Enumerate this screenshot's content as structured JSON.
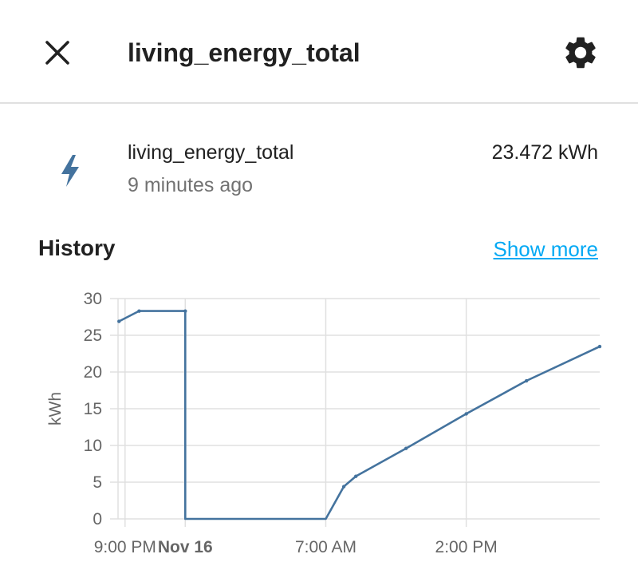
{
  "header": {
    "title": "living_energy_total",
    "close_icon": "close-icon",
    "settings_icon": "gear-icon"
  },
  "entity": {
    "icon": "lightning-bolt-icon",
    "name": "living_energy_total",
    "last_changed": "9 minutes ago",
    "state": "23.472 kWh"
  },
  "history": {
    "title": "History",
    "show_more": "Show more"
  },
  "colors": {
    "accent": "#03a9f4",
    "icon": "#44739e",
    "series": "#44739e",
    "grid": "#e0e0e0"
  },
  "chart_data": {
    "type": "line",
    "ylabel": "kWh",
    "ylim": [
      0,
      30
    ],
    "yticks": [
      0,
      5,
      10,
      15,
      20,
      25,
      30
    ],
    "grid": true,
    "xtick_labels": [
      {
        "label": "9:00 PM",
        "hour": 21,
        "bold": false
      },
      {
        "label": "Nov 16",
        "hour": 24,
        "bold": true
      },
      {
        "label": "7:00 AM",
        "hour": 31,
        "bold": false
      },
      {
        "label": "2:00 PM",
        "hour": 38,
        "bold": false
      }
    ],
    "xrange_hours": [
      20.65,
      44.65
    ],
    "series": [
      {
        "color": "#44739e",
        "points": [
          [
            20.7,
            26.9
          ],
          [
            21.7,
            28.3
          ],
          [
            24.0,
            28.3
          ],
          [
            24.0,
            0.0
          ],
          [
            31.0,
            0.0
          ],
          [
            31.9,
            4.4
          ],
          [
            32.5,
            5.8
          ],
          [
            35.0,
            9.6
          ],
          [
            38.0,
            14.3
          ],
          [
            41.0,
            18.8
          ],
          [
            44.65,
            23.472
          ]
        ]
      }
    ]
  }
}
